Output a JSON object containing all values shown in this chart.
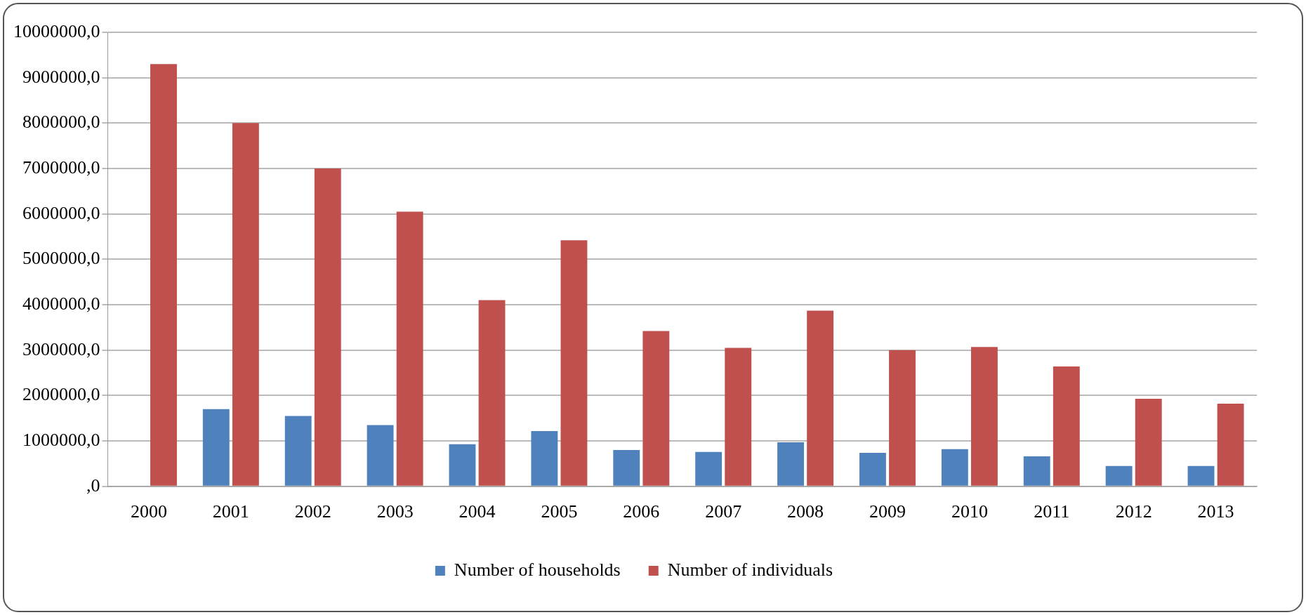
{
  "chart_data": {
    "type": "bar",
    "categories": [
      "2000",
      "2001",
      "2002",
      "2003",
      "2004",
      "2005",
      "2006",
      "2007",
      "2008",
      "2009",
      "2010",
      "2011",
      "2012",
      "2013"
    ],
    "series": [
      {
        "name": "Number of households",
        "color": "#4f81bd",
        "values": [
          null,
          1700000,
          1550000,
          1350000,
          930000,
          1220000,
          800000,
          760000,
          970000,
          740000,
          820000,
          660000,
          450000,
          450000
        ]
      },
      {
        "name": "Number of individuals",
        "color": "#c0504d",
        "values": [
          9300000,
          8000000,
          7000000,
          6050000,
          4100000,
          5420000,
          3420000,
          3050000,
          3870000,
          3000000,
          3070000,
          2640000,
          1930000,
          1820000
        ]
      }
    ],
    "ylim": [
      0,
      10000000
    ],
    "yticks": [
      {
        "value": 0,
        "label": ",0"
      },
      {
        "value": 1000000,
        "label": "1000000,0"
      },
      {
        "value": 2000000,
        "label": "2000000,0"
      },
      {
        "value": 3000000,
        "label": "3000000,0"
      },
      {
        "value": 4000000,
        "label": "4000000,0"
      },
      {
        "value": 5000000,
        "label": "5000000,0"
      },
      {
        "value": 6000000,
        "label": "6000000,0"
      },
      {
        "value": 7000000,
        "label": "7000000,0"
      },
      {
        "value": 8000000,
        "label": "8000000,0"
      },
      {
        "value": 9000000,
        "label": "9000000,0"
      },
      {
        "value": 10000000,
        "label": "10000000,0"
      }
    ],
    "grid": "y",
    "legend": "bottom"
  }
}
